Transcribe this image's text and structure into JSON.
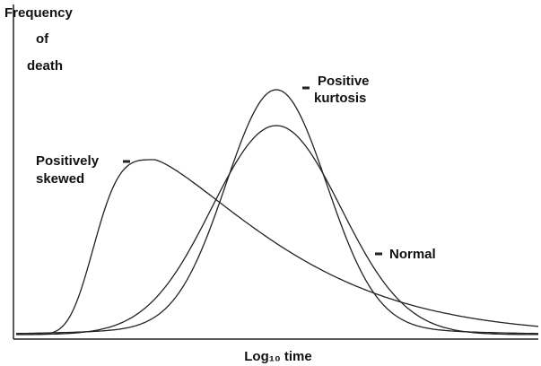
{
  "y_axis_label": [
    "Frequency",
    "of",
    "death"
  ],
  "x_axis_label": "Log₁₀ time",
  "curves": [
    {
      "label": [
        "Positive",
        "kurtosis"
      ]
    },
    {
      "label": [
        "Positively",
        "skewed"
      ]
    },
    {
      "label": [
        "Normal"
      ]
    }
  ]
}
